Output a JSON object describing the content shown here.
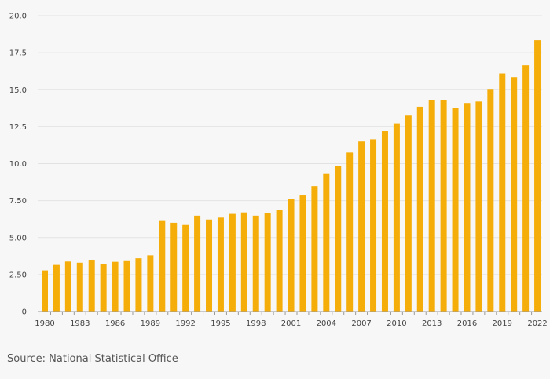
{
  "chart_data": {
    "type": "bar",
    "title": "",
    "xlabel": "",
    "ylabel": "",
    "ylim": [
      0,
      20
    ],
    "y_ticks": [
      0,
      2.5,
      5,
      7.5,
      10,
      12.5,
      15,
      17.5,
      20
    ],
    "y_tick_labels": [
      "0",
      "2.50",
      "5.00",
      "7.50",
      "10.0",
      "12.5",
      "15.0",
      "17.5",
      "20.0"
    ],
    "x_tick_labels": [
      "1980",
      "1983",
      "1986",
      "1989",
      "1992",
      "1995",
      "1998",
      "2001",
      "2004",
      "2007",
      "2010",
      "2013",
      "2016",
      "2019",
      "2022"
    ],
    "grid": true,
    "bar_color": "#f5ad0a",
    "categories": [
      1980,
      1981,
      1982,
      1983,
      1984,
      1985,
      1986,
      1987,
      1988,
      1989,
      1990,
      1991,
      1992,
      1993,
      1994,
      1995,
      1996,
      1997,
      1998,
      1999,
      2000,
      2001,
      2002,
      2003,
      2004,
      2005,
      2006,
      2007,
      2008,
      2009,
      2010,
      2011,
      2012,
      2013,
      2014,
      2015,
      2016,
      2017,
      2018,
      2019,
      2020,
      2021,
      2022
    ],
    "values": [
      2.78,
      3.15,
      3.38,
      3.3,
      3.5,
      3.2,
      3.36,
      3.46,
      3.6,
      3.8,
      6.12,
      6.0,
      5.85,
      6.48,
      6.22,
      6.35,
      6.6,
      6.7,
      6.48,
      6.65,
      6.85,
      7.6,
      7.85,
      8.48,
      9.3,
      9.85,
      10.75,
      11.5,
      11.65,
      12.2,
      12.7,
      13.25,
      13.85,
      14.3,
      14.3,
      13.75,
      14.1,
      14.2,
      15.0,
      16.1,
      15.85,
      16.65,
      18.35
    ]
  },
  "source_text": "Source: National Statistical Office"
}
